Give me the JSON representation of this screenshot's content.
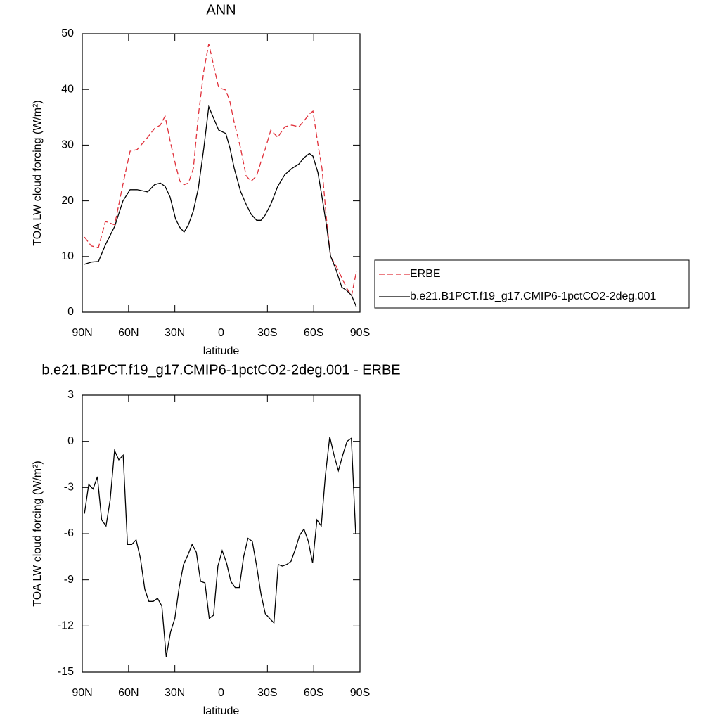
{
  "chart_data": [
    {
      "type": "line",
      "title": "ANN",
      "xlabel": "latitude",
      "ylabel": "TOA LW cloud forcing (W/m²)",
      "x": [
        88.6,
        84.1,
        79.5,
        75.0,
        69.0,
        63.6,
        59.0,
        54.4,
        47.6,
        43.1,
        39.4,
        36.3,
        33.1,
        29.5,
        26.7,
        24.0,
        21.2,
        18.0,
        14.8,
        11.2,
        8.0,
        1.6,
        -3.0,
        -5.7,
        -8.5,
        -12.6,
        -16.2,
        -19.4,
        -23.0,
        -25.8,
        -28.5,
        -32.2,
        -36.7,
        -41.3,
        -45.8,
        -50.4,
        -53.6,
        -57.2,
        -59.5,
        -62.7,
        -65.4,
        -68.2,
        -70.9,
        -74.5,
        -78.2,
        -81.4,
        -84.6,
        -87.7
      ],
      "series": [
        {
          "name": "ERBE",
          "color": "#e0303a",
          "line_style": "dashed",
          "values": [
            13.5,
            11.9,
            11.6,
            16.3,
            15.7,
            23.0,
            28.9,
            29.2,
            31.4,
            33.0,
            33.6,
            35.2,
            30.8,
            26.4,
            23.5,
            22.9,
            23.2,
            25.8,
            35.2,
            43.4,
            48.2,
            40.3,
            39.9,
            37.8,
            34.0,
            29.5,
            24.5,
            23.5,
            24.5,
            27.0,
            29.2,
            32.7,
            31.4,
            33.3,
            33.6,
            33.3,
            34.3,
            35.6,
            36.1,
            30.2,
            25.8,
            16.9,
            10.0,
            8.3,
            6.2,
            4.3,
            3.0,
            7.4
          ]
        },
        {
          "name": "b.e21.B1PCT.f19_g17.CMIP6-1pctCO2-2deg.001",
          "color": "#000000",
          "line_style": "solid",
          "values": [
            8.6,
            9.0,
            9.1,
            12.1,
            15.4,
            20.0,
            22.0,
            22.0,
            21.6,
            22.9,
            23.2,
            22.6,
            20.7,
            16.7,
            15.2,
            14.4,
            15.7,
            18.2,
            22.2,
            29.5,
            36.9,
            32.7,
            32.1,
            29.5,
            25.8,
            21.7,
            19.4,
            17.6,
            16.5,
            16.5,
            17.4,
            19.4,
            22.6,
            24.7,
            25.8,
            26.6,
            27.7,
            28.5,
            28.0,
            25.1,
            20.7,
            15.7,
            10.1,
            7.6,
            4.5,
            3.9,
            3.0,
            0.9
          ]
        }
      ],
      "xlim": [
        90,
        -90
      ],
      "xticks": [
        {
          "value": 90,
          "label": "90N"
        },
        {
          "value": 60,
          "label": "60N"
        },
        {
          "value": 30,
          "label": "30N"
        },
        0,
        {
          "value": -30,
          "label": "30S"
        },
        {
          "value": -60,
          "label": "60S"
        },
        {
          "value": -90,
          "label": "90S"
        }
      ],
      "ylim": [
        0,
        50
      ],
      "yticks": [
        0,
        10,
        20,
        30,
        40,
        50
      ],
      "legend": "right"
    },
    {
      "type": "line",
      "title": "b.e21.B1PCT.f19_g17.CMIP6-1pctCO2-2deg.001 - ERBE",
      "xlabel": "latitude",
      "ylabel": "TOA LW cloud forcing (W/m²)",
      "x": [
        88.6,
        85.8,
        83.0,
        80.2,
        77.4,
        74.6,
        71.9,
        69.1,
        66.3,
        63.5,
        60.7,
        57.9,
        55.1,
        52.3,
        49.5,
        46.8,
        44.0,
        41.2,
        38.4,
        35.6,
        32.8,
        30.0,
        27.2,
        24.4,
        21.6,
        18.8,
        16.1,
        13.3,
        10.5,
        7.7,
        4.9,
        2.1,
        -0.7,
        -3.5,
        -6.3,
        -9.1,
        -11.8,
        -14.6,
        -17.4,
        -20.2,
        -23.0,
        -25.8,
        -28.6,
        -31.4,
        -34.2,
        -37.0,
        -39.7,
        -42.5,
        -45.3,
        -48.1,
        -50.9,
        -53.7,
        -56.5,
        -59.3,
        -62.1,
        -64.9,
        -67.6,
        -70.4,
        -73.2,
        -76.0,
        -78.8,
        -81.6,
        -84.4,
        -87.2
      ],
      "values": [
        -4.7,
        -2.8,
        -3.1,
        -2.3,
        -5.1,
        -5.5,
        -3.8,
        -0.6,
        -1.2,
        -0.9,
        -6.7,
        -6.7,
        -6.4,
        -7.6,
        -9.6,
        -10.4,
        -10.4,
        -10.2,
        -10.7,
        -14.0,
        -12.4,
        -11.5,
        -9.5,
        -8.0,
        -7.4,
        -6.7,
        -7.2,
        -9.1,
        -9.2,
        -11.5,
        -11.3,
        -8.1,
        -7.1,
        -7.9,
        -9.1,
        -9.5,
        -9.5,
        -7.5,
        -6.3,
        -6.5,
        -8.1,
        -9.9,
        -11.2,
        -11.5,
        -11.8,
        -8.0,
        -8.1,
        -8.0,
        -7.8,
        -7.0,
        -6.1,
        -5.7,
        -6.5,
        -7.9,
        -5.1,
        -5.5,
        -2.2,
        0.3,
        -0.9,
        -1.9,
        -0.9,
        0.0,
        0.2,
        -6.0
      ],
      "color": "#000000",
      "xlim": [
        90,
        -90
      ],
      "xticks": [
        {
          "value": 90,
          "label": "90N"
        },
        {
          "value": 60,
          "label": "60N"
        },
        {
          "value": 30,
          "label": "30N"
        },
        0,
        {
          "value": -30,
          "label": "30S"
        },
        {
          "value": -60,
          "label": "60S"
        },
        {
          "value": -90,
          "label": "90S"
        }
      ],
      "ylim": [
        -15,
        3
      ],
      "yticks": [
        -15,
        -12,
        -9,
        -6,
        -3,
        0,
        3
      ]
    }
  ]
}
